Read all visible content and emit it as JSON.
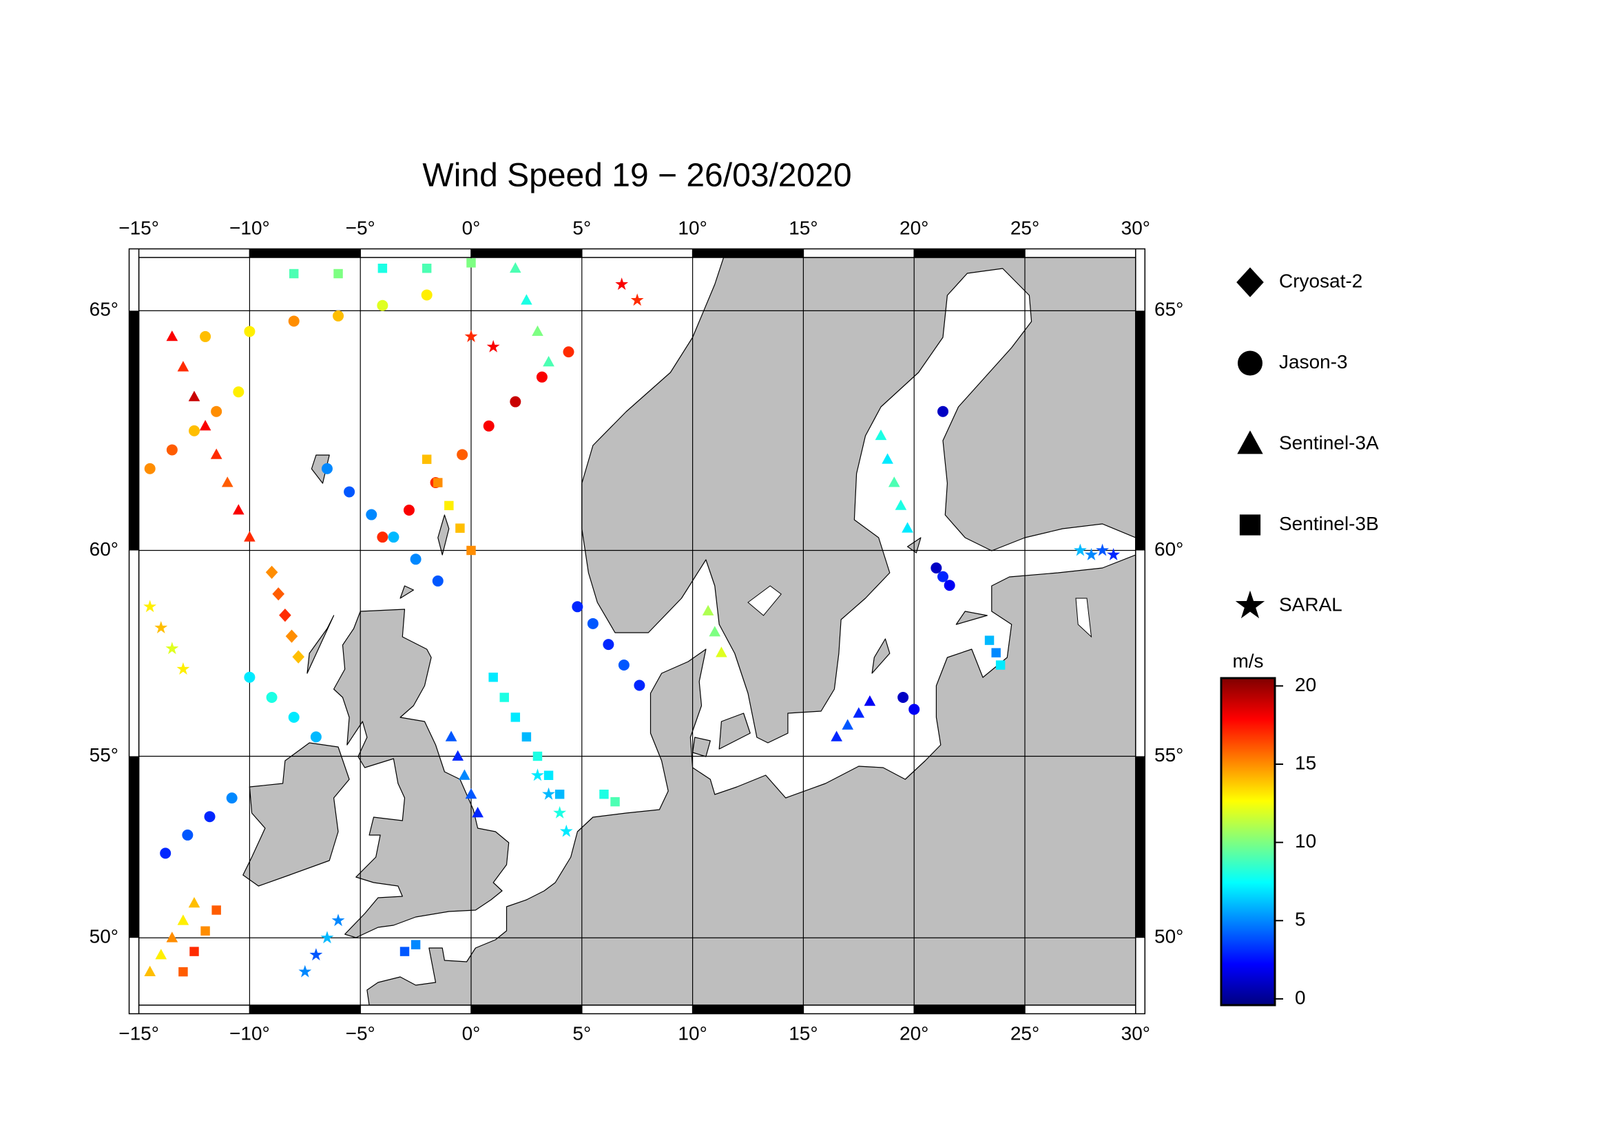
{
  "chart_data": {
    "type": "scatter",
    "title": "Wind Speed 19 − 26/03/2020",
    "projection": "mercator",
    "xlim": [
      -15,
      30
    ],
    "ylim": [
      48,
      66
    ],
    "xticks": [
      {
        "value": -15,
        "label": "−15°"
      },
      {
        "value": -10,
        "label": "−10°"
      },
      {
        "value": -5,
        "label": "−5°"
      },
      {
        "value": 0,
        "label": "0°"
      },
      {
        "value": 5,
        "label": "5°"
      },
      {
        "value": 10,
        "label": "10°"
      },
      {
        "value": 15,
        "label": "15°"
      },
      {
        "value": 20,
        "label": "20°"
      },
      {
        "value": 25,
        "label": "25°"
      },
      {
        "value": 30,
        "label": "30°"
      }
    ],
    "yticks": [
      {
        "value": 50,
        "label": "50°"
      },
      {
        "value": 55,
        "label": "55°"
      },
      {
        "value": 60,
        "label": "60°"
      },
      {
        "value": 65,
        "label": "65°"
      }
    ],
    "grid": true,
    "colorbar": {
      "label": "m/s",
      "colormap": "jet",
      "lim": [
        -0.4,
        20.5
      ],
      "ticks": [
        0,
        5,
        10,
        15,
        20
      ]
    },
    "series": [
      {
        "name": "Cryosat-2",
        "marker": "diamond",
        "x": [
          -9,
          -8.7,
          -8.4,
          -8.1,
          -7.8
        ],
        "y": [
          59.5,
          59,
          58.5,
          58,
          57.5
        ],
        "values": [
          15,
          16,
          17,
          15,
          14
        ]
      },
      {
        "name": "Jason-3",
        "marker": "circle",
        "x": [
          4.8,
          5.5,
          6.2,
          6.9,
          7.6,
          -4,
          -2.8,
          -1.6,
          -0.4,
          0.8,
          2,
          3.2,
          4.4,
          -6.5,
          -5.5,
          -4.5,
          -3.5,
          -2.5,
          -1.5,
          -13.8,
          -12.8,
          -11.8,
          -10.8,
          19.5,
          20,
          21,
          21.3,
          21.6,
          21.3,
          -12,
          -10,
          -8,
          -6,
          -4,
          -2,
          -14.5,
          -13.5,
          -12.5,
          -11.5,
          -10.5,
          -10,
          -9,
          -8,
          -7
        ],
        "y": [
          58.7,
          58.3,
          57.8,
          57.3,
          56.8,
          60.3,
          60.9,
          61.5,
          62.1,
          62.7,
          63.2,
          63.7,
          64.2,
          61.8,
          61.3,
          60.8,
          60.3,
          59.8,
          59.3,
          52.4,
          52.9,
          53.4,
          53.9,
          56.5,
          56.2,
          59.6,
          59.4,
          59.2,
          63,
          64.5,
          64.6,
          64.8,
          64.9,
          65.1,
          65.3,
          61.8,
          62.2,
          62.6,
          63,
          63.4,
          57,
          56.5,
          56,
          55.5
        ],
        "values": [
          3,
          4,
          3,
          4,
          3,
          17,
          18,
          17,
          16,
          18,
          19,
          18,
          17,
          5,
          4,
          5,
          6,
          5,
          4,
          3,
          4,
          3,
          5,
          1,
          2,
          1,
          3,
          2,
          1,
          14,
          13,
          15,
          14,
          12,
          13,
          15,
          16,
          14,
          15,
          13,
          7,
          8,
          7,
          6
        ]
      },
      {
        "name": "Sentinel-3A",
        "marker": "triangle",
        "x": [
          -13.5,
          -13,
          -12.5,
          -12,
          -11.5,
          -11,
          -10.5,
          -10,
          -0.9,
          -0.6,
          -0.3,
          0,
          0.3,
          18.5,
          18.8,
          19.1,
          19.4,
          19.7,
          10.7,
          11,
          11.3,
          -14.5,
          -14,
          -13.5,
          -13,
          -12.5,
          16.5,
          17,
          17.5,
          18,
          2,
          2.5,
          3,
          3.5
        ],
        "y": [
          64.5,
          63.9,
          63.3,
          62.7,
          62.1,
          61.5,
          60.9,
          60.3,
          55.5,
          55,
          54.5,
          54,
          53.5,
          62.5,
          62,
          61.5,
          61,
          60.5,
          58.6,
          58.1,
          57.6,
          49,
          49.5,
          50,
          50.5,
          51,
          55.5,
          55.8,
          56.1,
          56.4,
          65.8,
          65.2,
          64.6,
          64
        ],
        "values": [
          18,
          17,
          19,
          18,
          17,
          16,
          18,
          17,
          4,
          3,
          5,
          4,
          3,
          8,
          7,
          9,
          8,
          7,
          11,
          10,
          12,
          14,
          13,
          15,
          13,
          14,
          3,
          4,
          3,
          2,
          9,
          8,
          10,
          9
        ]
      },
      {
        "name": "Sentinel-3B",
        "marker": "square",
        "x": [
          -13,
          -12.5,
          -12,
          -11.5,
          1,
          1.5,
          2,
          2.5,
          3,
          3.5,
          4,
          -2,
          -1.5,
          -1,
          -0.5,
          0,
          23.4,
          23.7,
          23.9,
          -8,
          -6,
          -4,
          -2,
          0,
          6,
          6.5,
          -2.5,
          -3
        ],
        "y": [
          49,
          49.6,
          50.2,
          50.8,
          57,
          56.5,
          56,
          55.5,
          55,
          54.5,
          54,
          62,
          61.5,
          61,
          60.5,
          60,
          57.9,
          57.6,
          57.3,
          65.7,
          65.7,
          65.8,
          65.8,
          65.9,
          54,
          53.8,
          49.8,
          49.6
        ],
        "values": [
          16,
          17,
          15,
          16,
          7,
          8,
          7,
          6,
          8,
          7,
          6,
          14,
          15,
          13,
          14,
          15,
          6,
          5,
          7,
          9,
          10,
          8,
          9,
          10,
          8,
          9,
          5,
          4
        ]
      },
      {
        "name": "SARAL",
        "marker": "star",
        "x": [
          -14.5,
          -14,
          -13.5,
          -13,
          3,
          3.5,
          4,
          4.3,
          27.5,
          28,
          28.5,
          29,
          -7.5,
          -7,
          -6.5,
          -6,
          0,
          1,
          6.8,
          7.5
        ],
        "y": [
          58.7,
          58.2,
          57.7,
          57.2,
          54.5,
          54,
          53.5,
          53,
          60,
          59.9,
          60,
          59.9,
          49,
          49.5,
          50,
          50.5,
          64.5,
          64.3,
          65.5,
          65.2
        ],
        "values": [
          13,
          14,
          12,
          13,
          7,
          6,
          8,
          7,
          6,
          5,
          4,
          3,
          5,
          4,
          6,
          5,
          17,
          18,
          18,
          17
        ]
      }
    ]
  }
}
